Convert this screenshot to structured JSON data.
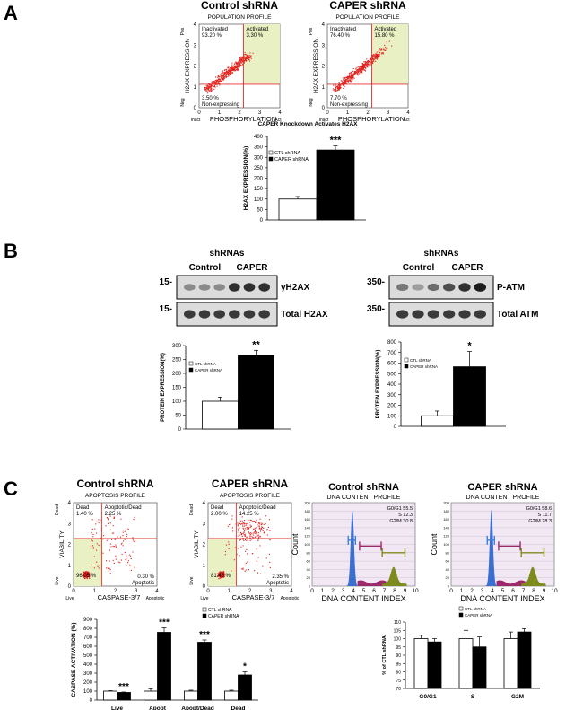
{
  "panel_letters": [
    "A",
    "B",
    "C"
  ],
  "panelA": {
    "flow": [
      {
        "title": "Control shRNA",
        "subtitle": "POPULATION PROFILE",
        "q_inactivated": "Inactivated\n93.20 %",
        "q_activated": "Activated\n3.30 %",
        "q_nonexp": "3.50 %\nNon-expressing",
        "ylabel": "H2AX EXPRESSION",
        "xlabel": "PHOSPHORYLATION",
        "y_top": "Pos",
        "y_bot": "Neg",
        "x_left": "Inact",
        "x_right": "Act"
      },
      {
        "title": "CAPER shRNA",
        "subtitle": "POPULATION PROFILE",
        "q_inactivated": "Inactivated\n76.40 %",
        "q_activated": "Activated\n15.80 %",
        "q_nonexp": "7.70 %\nNon-expressing",
        "ylabel": "H2AX EXPRESSION",
        "xlabel": "PHOSPHORYLATION",
        "y_top": "Pos",
        "y_bot": "Neg",
        "x_left": "Inact",
        "x_right": "Act"
      }
    ],
    "flow_ticks": [
      "0",
      "1",
      "2",
      "3",
      "4"
    ]
  },
  "panelB": {
    "blot_left": {
      "header": "shRNAs",
      "groups": [
        "Control",
        "CAPER"
      ],
      "markers": [
        "15-",
        "15-"
      ],
      "bands": [
        "γH2AX",
        "Total H2AX"
      ]
    },
    "blot_right": {
      "header": "shRNAs",
      "groups": [
        "Control",
        "CAPER"
      ],
      "markers": [
        "350-",
        "350-"
      ],
      "bands": [
        "P-ATM",
        "Total ATM"
      ]
    }
  },
  "panelC": {
    "apoptosis": [
      {
        "title": "Control shRNA",
        "subtitle": "APOPTOSIS PROFILE",
        "q_dead": "Dead\n1.40 %",
        "q_apodead": "Apoptotic/Dead\n2.25 %",
        "q_live": "96.05 %",
        "q_apo": "0.30 %\nApoptotic",
        "ylabel": "VIABILITY",
        "xlabel": "CASPASE-3/7",
        "y_top": "Dead",
        "y_bot": "Live",
        "x_left": "Live",
        "x_right": "Apoptotic"
      },
      {
        "title": "CAPER shRNA",
        "subtitle": "APOPTOSIS PROFILE",
        "q_dead": "Dead\n2.00 %",
        "q_apodead": "Apoptotic/Dead\n14.25 %",
        "q_live": "81.45 %",
        "q_apo": "2.35 %\nApoptotic",
        "ylabel": "VIABILITY",
        "xlabel": "CASPASE-3/7",
        "y_top": "Dead",
        "y_bot": "Live",
        "x_left": "Live",
        "x_right": "Apoptotic"
      }
    ],
    "cellcycle": [
      {
        "title": "Control shRNA",
        "subtitle": "DNA CONTENT PROFILE",
        "stats": [
          "G0/G1 55.5",
          "S 12.3",
          "G2/M 30.8"
        ],
        "ylabel": "Count",
        "xlabel": "DNA CONTENT INDEX"
      },
      {
        "title": "CAPER shRNA",
        "subtitle": "DNA CONTENT PROFILE",
        "stats": [
          "G0/G1 58.6",
          "S 11.7",
          "G2/M 28.3"
        ],
        "ylabel": "Count",
        "xlabel": "DNA CONTENT INDEX"
      }
    ],
    "cc_xticks": [
      "0",
      "1",
      "2",
      "3",
      "4",
      "5",
      "6",
      "7",
      "8",
      "9",
      "10"
    ],
    "cc_yticks": [
      "0",
      "20",
      "40",
      "60",
      "80",
      "100",
      "120",
      "140",
      "160",
      "180",
      "200"
    ]
  },
  "colors": {
    "ctl": "#ffffff",
    "caper": "#000000",
    "quadrant": "#e9f1c4",
    "dots": "#e0201c",
    "g1": "#3a6fd0",
    "s": "#9a2a6a",
    "g2": "#7d8b1e",
    "gate": "#d23030",
    "cc_bg": "#f2e8f4"
  },
  "chart_data": [
    {
      "type": "bar",
      "title": "CAPER Knockdown Activates H2AX",
      "xlabel": "",
      "ylabel": "H2AX EXPRESSION(%)",
      "ylim": [
        0,
        400
      ],
      "yticks": [
        "0",
        "50",
        "100",
        "150",
        "200",
        "250",
        "300",
        "350",
        "400"
      ],
      "categories": [
        ""
      ],
      "series": [
        {
          "name": "CTL shRNA",
          "values": [
            100
          ],
          "errors": [
            12
          ]
        },
        {
          "name": "CAPER shRNA",
          "values": [
            335
          ],
          "errors": [
            20
          ]
        }
      ],
      "significance": [
        "***"
      ],
      "legend": "top-left",
      "grid": false
    },
    {
      "type": "bar",
      "title": "",
      "xlabel": "",
      "ylabel": "PROTEIN EXPRESSION(%)",
      "ylim": [
        0,
        300
      ],
      "yticks": [
        "0",
        "50",
        "100",
        "150",
        "200",
        "250",
        "300"
      ],
      "categories": [
        ""
      ],
      "series": [
        {
          "name": "CTL shRNA",
          "values": [
            100
          ],
          "errors": [
            15
          ]
        },
        {
          "name": "CAPER shRNA",
          "values": [
            265
          ],
          "errors": [
            18
          ]
        }
      ],
      "significance": [
        "**"
      ],
      "legend": "top-left",
      "grid": false
    },
    {
      "type": "bar",
      "title": "",
      "xlabel": "",
      "ylabel": "PROTEIN EXPRESSION(%)",
      "ylim": [
        0,
        800
      ],
      "yticks": [
        "0",
        "100",
        "200",
        "300",
        "400",
        "500",
        "600",
        "700",
        "800"
      ],
      "categories": [
        ""
      ],
      "series": [
        {
          "name": "CTL shRNA",
          "values": [
            100
          ],
          "errors": [
            45
          ]
        },
        {
          "name": "CAPER shRNA",
          "values": [
            565
          ],
          "errors": [
            145
          ]
        }
      ],
      "significance": [
        "*"
      ],
      "legend": "top-left",
      "grid": false
    },
    {
      "type": "bar",
      "title": "",
      "xlabel": "",
      "ylabel": "CASPASE ACTIVATION (%)",
      "ylim": [
        0,
        900
      ],
      "yticks": [
        "0",
        "100",
        "200",
        "300",
        "400",
        "500",
        "600",
        "700",
        "800",
        "900"
      ],
      "categories": [
        "Live",
        "Apopt",
        "Apopt/Dead",
        "Dead"
      ],
      "series": [
        {
          "name": "CTL shRNA",
          "values": [
            100,
            100,
            100,
            100
          ],
          "errors": [
            5,
            25,
            10,
            10
          ]
        },
        {
          "name": "CAPER shRNA",
          "values": [
            85,
            755,
            645,
            280
          ],
          "errors": [
            5,
            50,
            25,
            35
          ]
        }
      ],
      "significance": [
        "***",
        "***",
        "***",
        "*"
      ],
      "legend": "top-right",
      "grid": false
    },
    {
      "type": "bar",
      "title": "",
      "xlabel": "",
      "ylabel": "% of CTL shRNA",
      "ylim": [
        70,
        110
      ],
      "yticks": [
        "70",
        "75",
        "80",
        "85",
        "90",
        "95",
        "100",
        "105",
        "110"
      ],
      "categories": [
        "G0/G1",
        "S",
        "G2M"
      ],
      "series": [
        {
          "name": "CTL shRNA",
          "values": [
            100,
            100,
            100
          ],
          "errors": [
            2,
            5,
            4
          ]
        },
        {
          "name": "CAPER shRNA",
          "values": [
            98,
            95,
            104
          ],
          "errors": [
            2,
            6,
            2
          ]
        }
      ],
      "significance": [
        "",
        "",
        ""
      ],
      "legend": "top-center",
      "grid": false
    }
  ]
}
